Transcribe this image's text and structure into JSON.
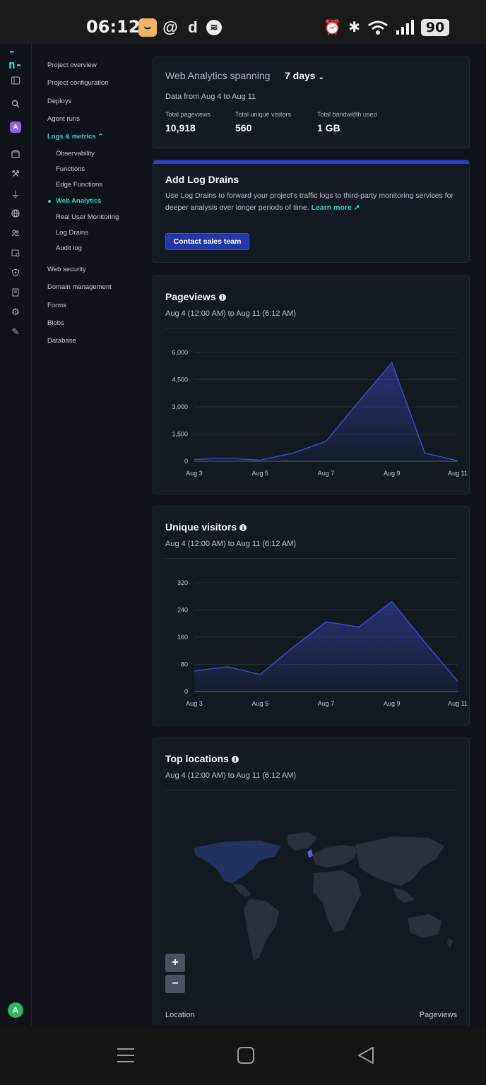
{
  "status_bar": {
    "time": "06:12",
    "battery": "90"
  },
  "sidebar": {
    "items": [
      {
        "label": "Project overview"
      },
      {
        "label": "Project configuration"
      },
      {
        "label": "Deploys"
      },
      {
        "label": "Agent runs"
      },
      {
        "label": "Logs & metrics ⌃"
      },
      {
        "label": "Observability"
      },
      {
        "label": "Functions"
      },
      {
        "label": "Edge Functions"
      },
      {
        "label": "Web Analytics"
      },
      {
        "label": "Real User Monitoring"
      },
      {
        "label": "Log Drains"
      },
      {
        "label": "Audit log"
      },
      {
        "label": "Web security"
      },
      {
        "label": "Domain management"
      },
      {
        "label": "Forms"
      },
      {
        "label": "Blobs"
      },
      {
        "label": "Database"
      }
    ]
  },
  "rail": {
    "team_avatar": "A",
    "user_avatar": "A"
  },
  "summary": {
    "label": "Web Analytics  spanning",
    "period": "7 days",
    "range": "Data from Aug 4 to Aug 11",
    "stats": [
      {
        "label": "Total pageviews",
        "value": "10,918"
      },
      {
        "label": "Total unique visitors",
        "value": "560"
      },
      {
        "label": "Total bandwidth used",
        "value": "1 GB"
      }
    ]
  },
  "log_drains": {
    "title": "Add Log Drains",
    "text": "Use Log Drains to forward your project's traffic logs to third-party monitoring services for deeper analysis over longer periods of time.",
    "link": "Learn more ↗",
    "button": "Contact sales team"
  },
  "locations": {
    "title": "Top locations",
    "range": "Aug 4 (12:00 AM) to Aug 11 (6:12 AM)",
    "zoom_in": "+",
    "zoom_out": "−",
    "col_location": "Location",
    "col_pageviews": "Pageviews"
  },
  "chart_data": [
    {
      "type": "area",
      "title": "Pageviews",
      "subtitle": "Aug 4 (12:00 AM) to Aug 11 (6:12 AM)",
      "x": [
        "Aug 3",
        "Aug 4",
        "Aug 5",
        "Aug 6",
        "Aug 7",
        "Aug 8",
        "Aug 9",
        "Aug 10",
        "Aug 11"
      ],
      "x_tick_labels": [
        "Aug 3",
        "Aug 5",
        "Aug 7",
        "Aug 9",
        "Aug 11"
      ],
      "values": [
        100,
        170,
        60,
        450,
        1100,
        3300,
        5450,
        450,
        30
      ],
      "ylim": [
        0,
        6000
      ],
      "y_ticks": [
        0,
        1500,
        3000,
        4500,
        6000
      ],
      "y_tick_labels": [
        "0",
        "1,500",
        "3,000",
        "4,500",
        "6,000"
      ],
      "grid": true,
      "color": "#3b4fd8"
    },
    {
      "type": "area",
      "title": "Unique visitors",
      "subtitle": "Aug 4 (12:00 AM) to Aug 11 (6:12 AM)",
      "x": [
        "Aug 3",
        "Aug 4",
        "Aug 5",
        "Aug 6",
        "Aug 7",
        "Aug 8",
        "Aug 9",
        "Aug 10",
        "Aug 11"
      ],
      "x_tick_labels": [
        "Aug 3",
        "Aug 5",
        "Aug 7",
        "Aug 9",
        "Aug 11"
      ],
      "values": [
        60,
        73,
        50,
        130,
        205,
        190,
        265,
        145,
        30
      ],
      "ylim": [
        0,
        320
      ],
      "y_ticks": [
        0,
        80,
        160,
        240,
        320
      ],
      "y_tick_labels": [
        "0",
        "80",
        "160",
        "240",
        "320"
      ],
      "grid": true,
      "color": "#3b4fd8"
    }
  ],
  "colors": {
    "accent": "#32d0d0",
    "brand_blue": "#2437a8",
    "series": "#3b4fd8",
    "card": "#141a22"
  }
}
